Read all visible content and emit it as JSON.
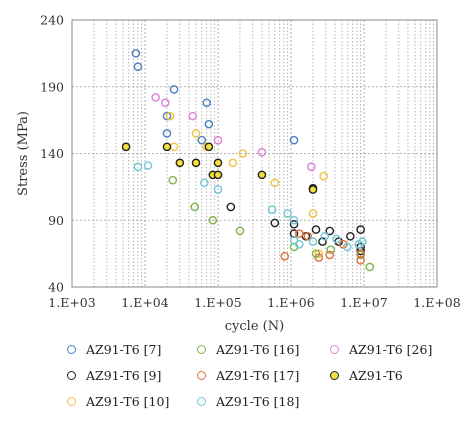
{
  "chart_data": {
    "type": "scatter",
    "xlabel": "cycle (N)",
    "ylabel": "Stress (MPa)",
    "x_scale": "log",
    "xlim": [
      1000,
      100000000
    ],
    "ylim": [
      40,
      240
    ],
    "x_ticks": [
      1000,
      10000,
      100000,
      1000000,
      10000000,
      100000000
    ],
    "x_tick_labels": [
      "1.E+03",
      "1.E+04",
      "1.E+05",
      "1.E+06",
      "1.E+07",
      "1.E+08"
    ],
    "y_ticks": [
      40,
      90,
      140,
      190,
      240
    ],
    "y_tick_labels": [
      "40",
      "90",
      "140",
      "190",
      "240"
    ],
    "grid": true,
    "legend_position": "bottom",
    "series": [
      {
        "name": "AZ91-T6 [7]",
        "stroke": "#4a7fc1",
        "fill": "none",
        "points": [
          [
            7500,
            215
          ],
          [
            8000,
            205
          ],
          [
            20000,
            168
          ],
          [
            20000,
            155
          ],
          [
            25000,
            188
          ],
          [
            70000,
            178
          ],
          [
            75000,
            162
          ],
          [
            60000,
            150
          ],
          [
            1100000,
            150
          ]
        ]
      },
      {
        "name": "AZ91-T6 [9]",
        "stroke": "#222222",
        "fill": "none",
        "points": [
          [
            150000,
            100
          ],
          [
            600000,
            88
          ],
          [
            1100000,
            87
          ],
          [
            1100000,
            80
          ],
          [
            1600000,
            78
          ],
          [
            2200000,
            83
          ],
          [
            2700000,
            74
          ],
          [
            3400000,
            82
          ],
          [
            4500000,
            74
          ],
          [
            6500000,
            78
          ],
          [
            9000000,
            83
          ],
          [
            9000000,
            70
          ],
          [
            9000000,
            67
          ]
        ]
      },
      {
        "name": "AZ91-T6 [10]",
        "stroke": "#f2c23e",
        "fill": "none",
        "points": [
          [
            22000,
            168
          ],
          [
            25000,
            145
          ],
          [
            50000,
            155
          ],
          [
            70000,
            145
          ],
          [
            160000,
            133
          ],
          [
            220000,
            140
          ],
          [
            600000,
            118
          ],
          [
            2800000,
            123
          ],
          [
            2000000,
            95
          ],
          [
            2400000,
            65
          ]
        ]
      },
      {
        "name": "AZ91-T6 [16]",
        "stroke": "#7fb24a",
        "fill": "none",
        "points": [
          [
            24000,
            120
          ],
          [
            48000,
            100
          ],
          [
            85000,
            90
          ],
          [
            200000,
            82
          ],
          [
            1100000,
            70
          ],
          [
            2200000,
            65
          ],
          [
            3500000,
            68
          ],
          [
            12000000,
            55
          ],
          [
            9000000,
            64
          ]
        ]
      },
      {
        "name": "AZ91-T6 [17]",
        "stroke": "#e0703a",
        "fill": "none",
        "points": [
          [
            1300000,
            80
          ],
          [
            820000,
            63
          ],
          [
            1700000,
            78
          ],
          [
            2400000,
            62
          ],
          [
            3400000,
            64
          ],
          [
            5200000,
            72
          ],
          [
            9000000,
            60
          ],
          [
            9000000,
            65
          ]
        ]
      },
      {
        "name": "AZ91-T6 [18]",
        "stroke": "#6fc6d6",
        "fill": "none",
        "points": [
          [
            8000,
            130
          ],
          [
            11000,
            131
          ],
          [
            65000,
            118
          ],
          [
            100000,
            113
          ],
          [
            550000,
            98
          ],
          [
            900000,
            95
          ],
          [
            1100000,
            90
          ],
          [
            1100000,
            75
          ],
          [
            1300000,
            72
          ],
          [
            2000000,
            74
          ],
          [
            2900000,
            78
          ],
          [
            4200000,
            76
          ],
          [
            5900000,
            70
          ],
          [
            9500000,
            74
          ],
          [
            8500000,
            72
          ]
        ]
      },
      {
        "name": "AZ91-T6 [26]",
        "stroke": "#e07fd6",
        "fill": "none",
        "points": [
          [
            14000,
            182
          ],
          [
            19000,
            178
          ],
          [
            45000,
            168
          ],
          [
            100000,
            150
          ],
          [
            400000,
            141
          ],
          [
            1900000,
            130
          ]
        ]
      },
      {
        "name": "AZ91-T6",
        "stroke": "#222222",
        "fill": "#f5e23a",
        "points": [
          [
            5500,
            145
          ],
          [
            20000,
            145
          ],
          [
            30000,
            133
          ],
          [
            50000,
            133
          ],
          [
            75000,
            145
          ],
          [
            85000,
            124
          ],
          [
            100000,
            124
          ],
          [
            100000,
            133
          ],
          [
            400000,
            124
          ],
          [
            2000000,
            114
          ],
          [
            2000000,
            113
          ]
        ]
      }
    ]
  }
}
